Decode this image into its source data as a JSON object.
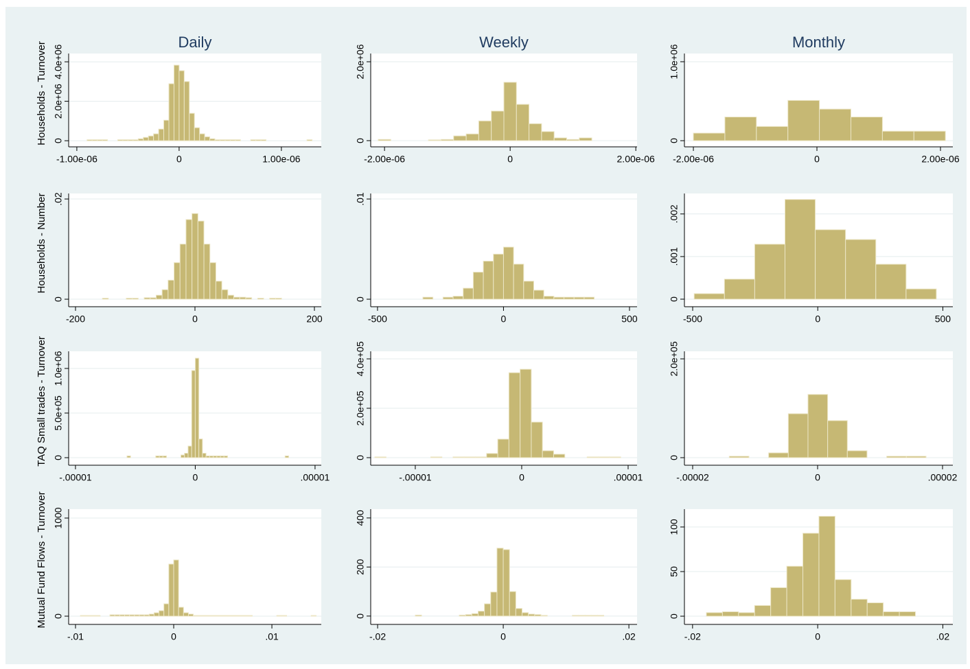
{
  "chart_data": [
    {
      "type": "histogram",
      "title": "Daily",
      "ylabel": "Households - Turnover",
      "color": "#c6b874",
      "grid": true,
      "bins": [
        -9e-07,
        -8.5e-07,
        -8e-07,
        -7.5e-07,
        -7e-07,
        -6.5e-07,
        -6e-07,
        -5.5e-07,
        -5e-07,
        -4.5e-07,
        -4e-07,
        -3.5e-07,
        -3e-07,
        -2.5e-07,
        -2e-07,
        -1.5e-07,
        -1e-07,
        -5e-08,
        0,
        5e-08,
        1e-07,
        1.5e-07,
        2e-07,
        2.5e-07,
        3e-07,
        3.5e-07,
        4e-07,
        4.5e-07,
        5e-07,
        5.5e-07,
        6e-07,
        6.5e-07,
        7e-07,
        7.5e-07,
        8e-07,
        8.5e-07,
        9e-07,
        9.5e-07,
        1e-06,
        1.05e-06,
        1.1e-06,
        1.15e-06,
        1.2e-06,
        1.25e-06,
        1.3e-06
      ],
      "values": [
        50000,
        50000,
        50000,
        50000,
        0,
        0,
        50000,
        50000,
        50000,
        50000,
        100000,
        170000,
        240000,
        350000,
        590000,
        1040000,
        2890000,
        3830000,
        3550000,
        3000000,
        1390000,
        660000,
        350000,
        200000,
        100000,
        50000,
        50000,
        50000,
        50000,
        50000,
        0,
        0,
        50000,
        50000,
        50000,
        0,
        0,
        0,
        0,
        0,
        0,
        0,
        0,
        50000
      ],
      "xlim": [
        -1.08e-06,
        1.39e-06
      ],
      "ylim": [
        -310000,
        4420000
      ],
      "xticks": [
        {
          "value": -1e-06,
          "label": "-1.00e-06"
        },
        0,
        {
          "value": 1e-06,
          "label": "1.00e-06"
        }
      ],
      "yticks": [
        0,
        {
          "value": 2000000,
          "label": "2.0e+06"
        },
        {
          "value": 4000000,
          "label": "4.0e+06"
        }
      ]
    },
    {
      "type": "histogram",
      "title": "Weekly",
      "color": "#c6b874",
      "grid": true,
      "bins": [
        -2.1e-06,
        -1.9e-06,
        -1.7e-06,
        -1.5e-06,
        -1.3e-06,
        -1.1e-06,
        -9e-07,
        -7e-07,
        -5e-07,
        -3e-07,
        -1e-07,
        1e-07,
        3e-07,
        5e-07,
        7e-07,
        9e-07,
        1.1e-06,
        1.3e-06
      ],
      "values": [
        30000,
        0,
        0,
        0,
        20000,
        30000,
        120000,
        170000,
        500000,
        750000,
        1480000,
        920000,
        430000,
        230000,
        70000,
        30000,
        70000
      ],
      "xlim": [
        -2.22e-06,
        2.02e-06
      ],
      "ylim": [
        -157000,
        2209000
      ],
      "xticks": [
        {
          "value": -2e-06,
          "label": "-2.00e-06"
        },
        0,
        {
          "value": 2e-06,
          "label": "2.00e-06"
        }
      ],
      "yticks": [
        0,
        {
          "value": 2000000,
          "label": "2.0e+06"
        }
      ]
    },
    {
      "type": "histogram",
      "title": "Monthly",
      "color": "#c6b874",
      "grid": true,
      "bins": [
        -2e-06,
        -1.49e-06,
        -9.8e-07,
        -4.7e-07,
        4e-08,
        5.5e-07,
        1.06e-06,
        1.57e-06,
        2.08e-06
      ],
      "values": [
        96000,
        300000,
        180000,
        510000,
        400000,
        300000,
        120000,
        120000
      ],
      "xlim": [
        -2.145e-06,
        2.2e-06
      ],
      "ylim": [
        -78000,
        1104000
      ],
      "xticks": [
        {
          "value": -2e-06,
          "label": "-2.00e-06"
        },
        0,
        {
          "value": 2e-06,
          "label": "2.00e-06"
        }
      ],
      "yticks": [
        0,
        {
          "value": 1000000,
          "label": "1.0e+06"
        }
      ]
    },
    {
      "type": "histogram",
      "ylabel": "Households - Number",
      "color": "#c6b874",
      "grid": true,
      "bins": [
        -155,
        -145,
        -135,
        -125,
        -115,
        -105,
        -95,
        -85,
        -75,
        -65,
        -55,
        -45,
        -35,
        -25,
        -15,
        -5,
        5,
        15,
        25,
        35,
        45,
        55,
        65,
        75,
        85,
        95,
        105,
        115,
        125,
        135,
        145
      ],
      "values": [
        0.0002,
        0,
        0,
        0,
        0.0002,
        0.0002,
        0,
        0.0003,
        0.0003,
        0.0008,
        0.0019,
        0.0038,
        0.0073,
        0.011,
        0.0159,
        0.0171,
        0.0156,
        0.011,
        0.0073,
        0.0036,
        0.0019,
        0.0008,
        0.0004,
        0.0004,
        0.0003,
        0,
        0.0002,
        0,
        0.0002,
        0.0002
      ],
      "xlim": [
        -211.5,
        211.5
      ],
      "ylim": [
        -0.0015,
        0.0211
      ],
      "xticks": [
        -200,
        0,
        200
      ],
      "yticks": [
        0,
        {
          "value": 0.02,
          "label": ".02"
        }
      ]
    },
    {
      "type": "histogram",
      "color": "#c6b874",
      "grid": true,
      "bins": [
        -320,
        -280,
        -240,
        -200,
        -160,
        -120,
        -80,
        -40,
        0,
        40,
        80,
        120,
        160,
        200,
        240,
        280,
        320,
        360
      ],
      "values": [
        0.0002,
        0,
        0.0002,
        0.0003,
        0.0011,
        0.0027,
        0.0038,
        0.0045,
        0.0052,
        0.0035,
        0.0018,
        0.0009,
        0.0003,
        0.0002,
        0.0002,
        0.0002,
        0.0002
      ],
      "xlim": [
        -527,
        530
      ],
      "ylim": [
        -0.00075,
        0.01055
      ],
      "xticks": [
        -500,
        0,
        500
      ],
      "yticks": [
        0,
        {
          "value": 0.01,
          "label": ".01"
        }
      ]
    },
    {
      "type": "histogram",
      "color": "#c6b874",
      "grid": true,
      "bins": [
        -494,
        -373,
        -252,
        -131,
        -10,
        111,
        232,
        353,
        474
      ],
      "values": [
        0.00013,
        0.00047,
        0.00129,
        0.00234,
        0.00163,
        0.0014,
        0.00082,
        0.00024
      ],
      "xlim": [
        -533,
        540
      ],
      "ylim": [
        -0.000177,
        0.00248
      ],
      "xticks": [
        -500,
        0,
        500
      ],
      "yticks": [
        0,
        {
          "value": 0.001,
          "label": ".001"
        },
        {
          "value": 0.002,
          "label": ".002"
        }
      ]
    },
    {
      "type": "histogram",
      "ylabel": "TAQ Small trades - Turnover",
      "color": "#c6b874",
      "grid": true,
      "bins": [
        -5.7e-06,
        -5.4e-06,
        -5.1e-06,
        -4.8e-06,
        -4.5e-06,
        -4.2e-06,
        -3.9e-06,
        -3.6e-06,
        -3.3e-06,
        -3e-06,
        -2.7e-06,
        -2.4e-06,
        -2.1e-06,
        -1.8e-06,
        -1.5e-06,
        -1.2e-06,
        -9e-07,
        -6e-07,
        -3e-07,
        0,
        3e-07,
        6e-07,
        9e-07,
        1.2e-06,
        1.5e-06,
        1.8e-06,
        2.1e-06,
        2.4e-06,
        2.7e-06,
        3e-06,
        3.3e-06,
        3.6e-06,
        3.9e-06,
        4.2e-06,
        4.5e-06,
        4.8e-06,
        5.1e-06,
        5.4e-06,
        5.7e-06,
        6e-06,
        6.3e-06,
        6.6e-06,
        6.9e-06,
        7.2e-06,
        7.5e-06,
        7.8e-06
      ],
      "values": [
        20000,
        0,
        0,
        0,
        0,
        0,
        0,
        0,
        20000,
        20000,
        20000,
        0,
        0,
        0,
        0,
        30000,
        50000,
        130000,
        977000,
        1115000,
        210000,
        50000,
        20000,
        20000,
        20000,
        20000,
        20000,
        20000,
        0,
        0,
        0,
        0,
        0,
        0,
        0,
        0,
        0,
        0,
        0,
        0,
        0,
        0,
        0,
        0,
        20000
      ],
      "xlim": [
        -1.057e-05,
        1.052e-05
      ],
      "ylim": [
        -84600,
        1192000
      ],
      "xticks": [
        {
          "value": -1e-05,
          "label": "-.00001"
        },
        0,
        {
          "value": 1e-05,
          "label": ".00001"
        }
      ],
      "yticks": [
        0,
        {
          "value": 500000,
          "label": "5.0e+05"
        },
        {
          "value": 1000000,
          "label": "1.0e+06"
        }
      ]
    },
    {
      "type": "histogram",
      "color": "#c6b874",
      "grid": true,
      "bins": [
        -1.38e-05,
        -1.275e-05,
        -1.17e-05,
        -1.065e-05,
        -9.6e-06,
        -8.55e-06,
        -7.5e-06,
        -6.45e-06,
        -5.4e-06,
        -4.35e-06,
        -3.3e-06,
        -2.25e-06,
        -1.2e-06,
        -1.5e-07,
        9e-07,
        1.95e-06,
        3e-06,
        4.05e-06,
        5.1e-06,
        6.15e-06,
        7.2e-06,
        8.25e-06,
        9.3e-06
      ],
      "values": [
        3000,
        0,
        0,
        0,
        0,
        3000,
        0,
        3000,
        3000,
        3000,
        17000,
        75000,
        344000,
        358000,
        144000,
        28000,
        14000,
        0,
        0,
        3000,
        3000,
        3000
      ],
      "xlim": [
        -1.419e-05,
        1.084e-05
      ],
      "ylim": [
        -30600,
        430600
      ],
      "xticks": [
        {
          "value": -1e-05,
          "label": "-.00001"
        },
        0,
        {
          "value": 1e-05,
          "label": ".00001"
        }
      ],
      "yticks": [
        0,
        {
          "value": 200000,
          "label": "2.0e+05"
        },
        {
          "value": 400000,
          "label": "4.0e+05"
        }
      ]
    },
    {
      "type": "histogram",
      "color": "#c6b874",
      "grid": true,
      "bins": [
        -1.414e-05,
        -1.099e-05,
        -7.84e-06,
        -4.69e-06,
        -1.54e-06,
        1.61e-06,
        4.76e-06,
        7.91e-06,
        1.106e-05,
        1.421e-05,
        1.736e-05
      ],
      "values": [
        2800,
        0,
        9700,
        89000,
        128000,
        75000,
        14000,
        0,
        2800,
        2800
      ],
      "xlim": [
        -2.132e-05,
        2.165e-05
      ],
      "ylim": [
        -15300,
        215300
      ],
      "xticks": [
        {
          "value": -2e-05,
          "label": "-.00002"
        },
        0,
        {
          "value": 2e-05,
          "label": ".00002"
        }
      ],
      "yticks": [
        0,
        {
          "value": 200000,
          "label": "2.0e+05"
        }
      ]
    },
    {
      "type": "histogram",
      "ylabel": "Mutual Fund Flows - Turnover",
      "color": "#c6b874",
      "grid": true,
      "bins": [
        -0.01,
        -0.0095,
        -0.009,
        -0.0085,
        -0.008,
        -0.0075,
        -0.007,
        -0.0065,
        -0.006,
        -0.0055,
        -0.005,
        -0.0045,
        -0.004,
        -0.0035,
        -0.003,
        -0.0025,
        -0.002,
        -0.0015,
        -0.001,
        -0.0005,
        0,
        0.0005,
        0.001,
        0.0015,
        0.002,
        0.0025,
        0.003,
        0.0035,
        0.004,
        0.0045,
        0.005,
        0.0055,
        0.006,
        0.0065,
        0.007,
        0.0075,
        0.008,
        0.0085,
        0.009,
        0.0095,
        0.01,
        0.0105,
        0.011,
        0.0115,
        0.012,
        0.0125,
        0.013,
        0.0135,
        0.014,
        0.0145
      ],
      "values": [
        0,
        7,
        7,
        7,
        7,
        0,
        0,
        14,
        14,
        14,
        14,
        14,
        14,
        14,
        14,
        21,
        35,
        56,
        126,
        531,
        573,
        91,
        35,
        21,
        7,
        7,
        7,
        7,
        7,
        7,
        7,
        7,
        7,
        7,
        7,
        7,
        0,
        0,
        0,
        0,
        0,
        7,
        7,
        0,
        0,
        0,
        0,
        0,
        7
      ],
      "xlim": [
        -0.0107,
        0.01503
      ],
      "ylim": [
        -84,
        1091
      ],
      "xticks": [
        {
          "value": -0.01,
          "label": "-.01"
        },
        0,
        {
          "value": 0.01,
          "label": ".01"
        }
      ],
      "yticks": [
        0,
        1000
      ]
    },
    {
      "type": "histogram",
      "color": "#c6b874",
      "grid": true,
      "bins": [
        -0.014,
        -0.013,
        -0.012,
        -0.011,
        -0.01,
        -0.009,
        -0.008,
        -0.007,
        -0.006,
        -0.005,
        -0.004,
        -0.003,
        -0.002,
        -0.001,
        0,
        0.001,
        0.002,
        0.003,
        0.004,
        0.005,
        0.006,
        0.007,
        0.008,
        0.009,
        0.01,
        0.011,
        0.012,
        0.013,
        0.014,
        0.015,
        0.016
      ],
      "values": [
        4,
        0,
        0,
        0,
        0,
        0,
        0,
        4,
        6,
        10,
        20,
        50,
        98,
        277,
        271,
        100,
        31,
        14,
        8,
        6,
        3,
        0,
        0,
        0,
        0,
        3,
        3,
        3,
        3,
        3
      ],
      "xlim": [
        -0.0211,
        0.0213
      ],
      "ylim": [
        -34,
        436
      ],
      "xticks": [
        {
          "value": -0.02,
          "label": "-.02"
        },
        0,
        {
          "value": 0.02,
          "label": ".02"
        }
      ],
      "yticks": [
        0,
        200,
        400
      ]
    },
    {
      "type": "histogram",
      "color": "#c6b874",
      "grid": true,
      "bins": [
        -0.01779,
        -0.01522,
        -0.01265,
        -0.01008,
        -0.00751,
        -0.00494,
        -0.00237,
        0.0002,
        0.00277,
        0.00534,
        0.00791,
        0.01048,
        0.01305,
        0.01562
      ],
      "values": [
        4,
        5,
        4,
        12,
        32,
        56,
        93,
        112,
        41,
        19,
        15,
        5,
        5
      ],
      "xlim": [
        -0.0213,
        0.0216
      ],
      "ylim": [
        -9.2,
        120
      ],
      "xticks": [
        {
          "value": -0.02,
          "label": "-.02"
        },
        0,
        {
          "value": 0.02,
          "label": ".02"
        }
      ],
      "yticks": [
        0,
        50,
        100
      ]
    }
  ]
}
